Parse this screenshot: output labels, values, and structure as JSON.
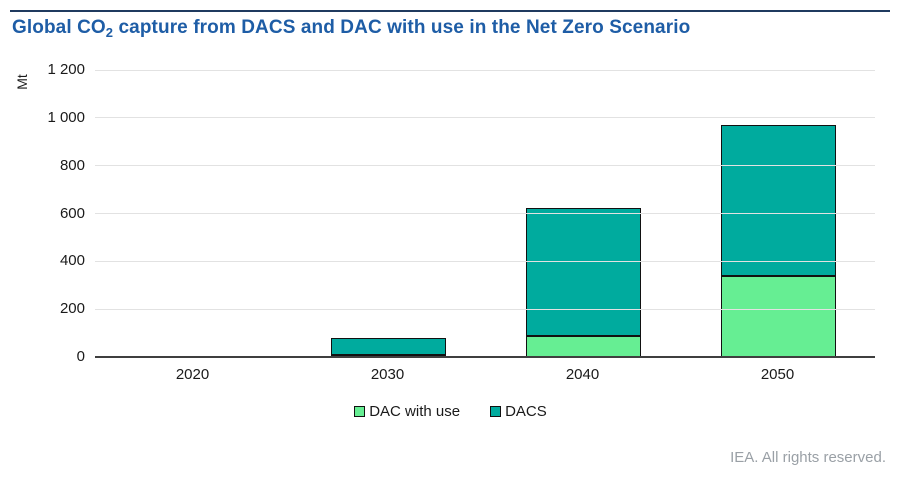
{
  "header": {
    "title_prefix": "Global CO",
    "title_subscript": "2",
    "title_suffix": " capture from DACS and DAC with use in the Net Zero Scenario"
  },
  "footer": {
    "credit": "IEA. All rights reserved."
  },
  "colors": {
    "title_blue": "#1e5da6",
    "top_rule_navy": "#1f3a5f",
    "dac_with_use_green": "#66ee93",
    "dacs_teal": "#00ab9e",
    "gridline_gray": "#e2e2e2",
    "axis_dark": "#3f3f3f",
    "footer_gray": "#9aa0a6"
  },
  "chart_data": {
    "type": "bar",
    "stacked": true,
    "title": "Global CO2 capture from DACS and DAC with use in the Net Zero Scenario",
    "categories": [
      "2020",
      "2030",
      "2040",
      "2050"
    ],
    "series": [
      {
        "name": "DAC with use",
        "color": "#66ee93",
        "values": [
          0,
          10,
          90,
          345
        ]
      },
      {
        "name": "DACS",
        "color": "#00ab9e",
        "values": [
          0,
          75,
          540,
          635
        ]
      }
    ],
    "totals": [
      0,
      85,
      630,
      980
    ],
    "xlabel": "",
    "ylabel": "Mt",
    "ylim": [
      0,
      1200
    ],
    "yticks": [
      {
        "value": 0,
        "label": "0"
      },
      {
        "value": 200,
        "label": "200"
      },
      {
        "value": 400,
        "label": "400"
      },
      {
        "value": 600,
        "label": "600"
      },
      {
        "value": 800,
        "label": "800"
      },
      {
        "value": 1000,
        "label": "1 000"
      },
      {
        "value": 1200,
        "label": "1 200"
      }
    ],
    "grid": true,
    "legend_position": "bottom"
  }
}
